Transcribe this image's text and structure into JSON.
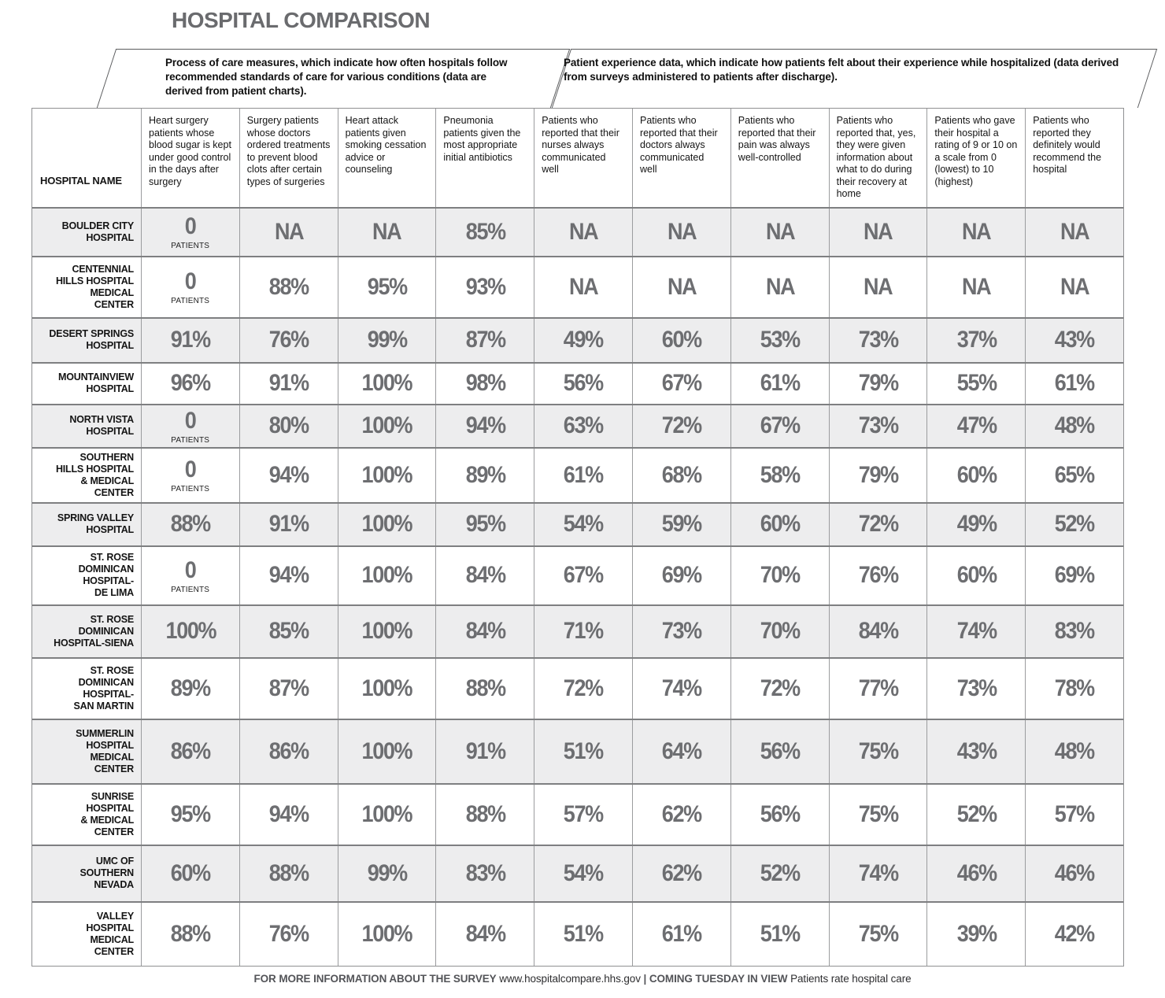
{
  "title": "HOSPITAL COMPARISON",
  "banners": {
    "process": "Process of care measures, which indicate how often hospitals follow recommended standards of care for various conditions (data are derived from patient charts).",
    "experience": "Patient experience data, which indicate how patients felt about their experience while hospitalized (data derived from surveys administered to patients after discharge)."
  },
  "chart_data": {
    "type": "table",
    "title": "HOSPITAL COMPARISON",
    "row_header": "HOSPITAL NAME",
    "columns": [
      "Heart surgery patients whose blood sugar is kept under good control in the days after surgery",
      "Surgery patients whose doctors ordered treatments to prevent blood clots after certain types of surgeries",
      "Heart attack patients given smoking cessation advice or counseling",
      "Pneumonia patients given the most appropriate initial antibiotics",
      "Patients who reported that their nurses always communicated well",
      "Patients who reported that their doctors always communicated well",
      "Patients who reported that their pain was always well-controlled",
      "Patients who reported that, yes, they were given information about what to do during their recovery at home",
      "Patients who gave their hospital a rating of 9 or 10 on a scale from 0 (lowest) to 10 (highest)",
      "Patients who reported they definitely would recommend the hospital"
    ],
    "rows": [
      {
        "name": "BOULDER CITY HOSPITAL",
        "display_name": "BOULDER CITY\nHOSPITAL",
        "values": [
          "0 PATIENTS",
          "NA",
          "NA",
          "85%",
          "NA",
          "NA",
          "NA",
          "NA",
          "NA",
          "NA"
        ]
      },
      {
        "name": "CENTENNIAL HILLS HOSPITAL MEDICAL CENTER",
        "display_name": "CENTENNIAL\nHILLS HOSPITAL\nMEDICAL\nCENTER",
        "values": [
          "0 PATIENTS",
          "88%",
          "95%",
          "93%",
          "NA",
          "NA",
          "NA",
          "NA",
          "NA",
          "NA"
        ]
      },
      {
        "name": "DESERT SPRINGS HOSPITAL",
        "display_name": "DESERT SPRINGS\nHOSPITAL",
        "values": [
          "91%",
          "76%",
          "99%",
          "87%",
          "49%",
          "60%",
          "53%",
          "73%",
          "37%",
          "43%"
        ]
      },
      {
        "name": "MOUNTAINVIEW HOSPITAL",
        "display_name": "MOUNTAINVIEW\nHOSPITAL",
        "values": [
          "96%",
          "91%",
          "100%",
          "98%",
          "56%",
          "67%",
          "61%",
          "79%",
          "55%",
          "61%"
        ]
      },
      {
        "name": "NORTH VISTA HOSPITAL",
        "display_name": "NORTH VISTA\nHOSPITAL",
        "values": [
          "0 PATIENTS",
          "80%",
          "100%",
          "94%",
          "63%",
          "72%",
          "67%",
          "73%",
          "47%",
          "48%"
        ]
      },
      {
        "name": "SOUTHERN HILLS HOSPITAL & MEDICAL CENTER",
        "display_name": "SOUTHERN\nHILLS HOSPITAL\n& MEDICAL\nCENTER",
        "values": [
          "0 PATIENTS",
          "94%",
          "100%",
          "89%",
          "61%",
          "68%",
          "58%",
          "79%",
          "60%",
          "65%"
        ]
      },
      {
        "name": "SPRING VALLEY HOSPITAL",
        "display_name": "SPRING VALLEY\nHOSPITAL",
        "values": [
          "88%",
          "91%",
          "100%",
          "95%",
          "54%",
          "59%",
          "60%",
          "72%",
          "49%",
          "52%"
        ]
      },
      {
        "name": "ST. ROSE DOMINICAN HOSPITAL-DE LIMA",
        "display_name": "ST. ROSE\nDOMINICAN\nHOSPITAL-\nDE LIMA",
        "values": [
          "0 PATIENTS",
          "94%",
          "100%",
          "84%",
          "67%",
          "69%",
          "70%",
          "76%",
          "60%",
          "69%"
        ]
      },
      {
        "name": "ST. ROSE DOMINICAN HOSPITAL-SIENA",
        "display_name": "ST. ROSE\nDOMINICAN\nHOSPITAL-SIENA",
        "values": [
          "100%",
          "85%",
          "100%",
          "84%",
          "71%",
          "73%",
          "70%",
          "84%",
          "74%",
          "83%"
        ]
      },
      {
        "name": "ST. ROSE DOMINICAN HOSPITAL-SAN MARTIN",
        "display_name": "ST. ROSE\nDOMINICAN\nHOSPITAL-\nSAN MARTIN",
        "values": [
          "89%",
          "87%",
          "100%",
          "88%",
          "72%",
          "74%",
          "72%",
          "77%",
          "73%",
          "78%"
        ]
      },
      {
        "name": "SUMMERLIN HOSPITAL MEDICAL CENTER",
        "display_name": "SUMMERLIN\nHOSPITAL\nMEDICAL\nCENTER",
        "values": [
          "86%",
          "86%",
          "100%",
          "91%",
          "51%",
          "64%",
          "56%",
          "75%",
          "43%",
          "48%"
        ]
      },
      {
        "name": "SUNRISE HOSPITAL & MEDICAL CENTER",
        "display_name": "SUNRISE\nHOSPITAL\n& MEDICAL\nCENTER",
        "values": [
          "95%",
          "94%",
          "100%",
          "88%",
          "57%",
          "62%",
          "56%",
          "75%",
          "52%",
          "57%"
        ]
      },
      {
        "name": "UMC OF SOUTHERN NEVADA",
        "display_name": "UMC OF\nSOUTHERN\nNEVADA",
        "values": [
          "60%",
          "88%",
          "99%",
          "83%",
          "54%",
          "62%",
          "52%",
          "74%",
          "46%",
          "46%"
        ]
      },
      {
        "name": "VALLEY HOSPITAL MEDICAL CENTER",
        "display_name": "VALLEY\nHOSPITAL\nMEDICAL\nCENTER",
        "values": [
          "88%",
          "76%",
          "100%",
          "84%",
          "51%",
          "61%",
          "51%",
          "75%",
          "39%",
          "42%"
        ]
      }
    ],
    "na_label": "NA",
    "zero_patients_main": "0",
    "zero_patients_sub": "PATIENTS"
  },
  "footer": {
    "info_label": "FOR MORE INFORMATION ABOUT THE SURVEY",
    "url": "www.hospitalcompare.hhs.gov",
    "divider": "|",
    "coming_label": "COMING TUESDAY IN VIEW",
    "coming_text": "Patients rate hospital care"
  },
  "colors": {
    "title_text": "#6a6b6e",
    "value_text": "#6d6e71",
    "shaded_row": "#ededee",
    "grid_line": "#9b9c9e",
    "row_separator": "#7e7f81",
    "banner_border": "#5a5b5d"
  }
}
